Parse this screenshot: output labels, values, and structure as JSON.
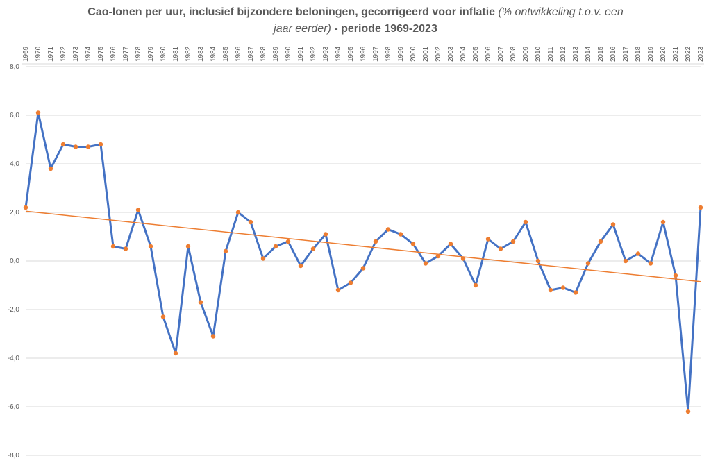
{
  "chart_data": {
    "type": "line",
    "title": "Cao-lonen per uur, inclusief bijzondere beloningen, gecorrigeerd voor inflatie",
    "title_italic": "(% ontwikkeling t.o.v. een jaar eerder)",
    "title_end": "- periode 1969-2023",
    "categories": [
      "1969",
      "1970",
      "1971",
      "1972",
      "1973",
      "1974",
      "1975",
      "1976",
      "1977",
      "1978",
      "1979",
      "1980",
      "1981",
      "1982",
      "1983",
      "1984",
      "1985",
      "1986",
      "1987",
      "1988",
      "1989",
      "1990",
      "1991",
      "1992",
      "1993",
      "1994",
      "1995",
      "1996",
      "1997",
      "1998",
      "1999",
      "2000",
      "2001",
      "2002",
      "2003",
      "2004",
      "2005",
      "2006",
      "2007",
      "2008",
      "2009",
      "2010",
      "2011",
      "2012",
      "2013",
      "2014",
      "2015",
      "2016",
      "2017",
      "2018",
      "2019",
      "2020",
      "2021",
      "2022",
      "2023"
    ],
    "series": [
      {
        "color": "#4472c4",
        "marker_color": "#ed7d31",
        "values": [
          2.2,
          6.1,
          3.8,
          4.8,
          4.7,
          4.7,
          4.8,
          0.6,
          0.5,
          2.1,
          0.6,
          -2.3,
          -3.8,
          0.6,
          -1.7,
          -3.1,
          0.4,
          2.0,
          1.6,
          0.1,
          0.6,
          0.8,
          -0.2,
          0.5,
          1.1,
          -1.2,
          -0.9,
          -0.3,
          0.8,
          1.3,
          1.1,
          0.7,
          -0.1,
          0.2,
          0.7,
          0.1,
          -1.0,
          0.9,
          0.5,
          0.8,
          1.6,
          0.0,
          -1.2,
          -1.1,
          -1.3,
          -0.1,
          0.8,
          1.5,
          0.0,
          0.3,
          -0.1,
          1.6,
          -0.6,
          -6.2,
          2.2
        ]
      }
    ],
    "trendline": {
      "color": "#ed7d31",
      "start": 2.05,
      "end": -0.85
    },
    "ylim": [
      -8,
      8
    ],
    "yticks": [
      {
        "value": -8,
        "label": "-8,0"
      },
      {
        "value": -6,
        "label": "-6,0"
      },
      {
        "value": -4,
        "label": "-4,0"
      },
      {
        "value": -2,
        "label": "-2,0"
      },
      {
        "value": 0,
        "label": "0,0"
      },
      {
        "value": 2,
        "label": "2,0"
      },
      {
        "value": 4,
        "label": "4,0"
      },
      {
        "value": 6,
        "label": "6,0"
      },
      {
        "value": 8,
        "label": "8,0"
      }
    ],
    "grid": true
  }
}
